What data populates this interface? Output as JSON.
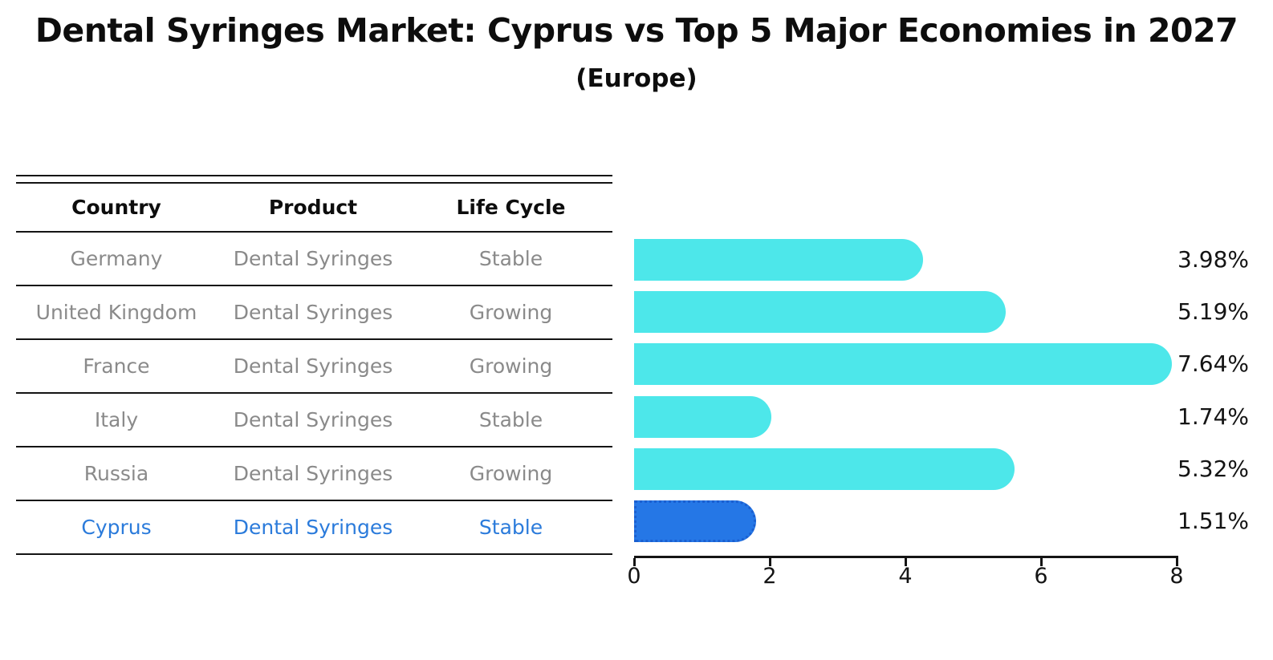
{
  "title": "Dental Syringes Market: Cyprus vs Top 5 Major Economies in 2027",
  "subtitle": "(Europe)",
  "table": {
    "headers": [
      "Country",
      "Product",
      "Life Cycle"
    ],
    "rows": [
      {
        "country": "Germany",
        "product": "Dental Syringes",
        "life_cycle": "Stable",
        "highlight": false
      },
      {
        "country": "United Kingdom",
        "product": "Dental Syringes",
        "life_cycle": "Growing",
        "highlight": false
      },
      {
        "country": "France",
        "product": "Dental Syringes",
        "life_cycle": "Growing",
        "highlight": false
      },
      {
        "country": "Italy",
        "product": "Dental Syringes",
        "life_cycle": "Stable",
        "highlight": false
      },
      {
        "country": "Russia",
        "product": "Dental Syringes",
        "life_cycle": "Growing",
        "highlight": true
      },
      {
        "country": "Cyprus",
        "product": "Dental Syringes",
        "life_cycle": "Stable",
        "highlight": true
      }
    ]
  },
  "chart_data": {
    "type": "bar",
    "orientation": "horizontal",
    "categories": [
      "Germany",
      "United Kingdom",
      "France",
      "Italy",
      "Russia",
      "Cyprus"
    ],
    "values": [
      3.98,
      5.19,
      7.64,
      1.74,
      5.32,
      1.51
    ],
    "value_labels": [
      "3.98%",
      "5.19%",
      "7.64%",
      "1.74%",
      "5.32%",
      "1.51%"
    ],
    "highlight_index": 5,
    "xlim": [
      0,
      8
    ],
    "x_ticks": [
      "0",
      "2",
      "4",
      "6",
      "8"
    ],
    "grid": false,
    "legend": false,
    "title": "Dental Syringes Market: Cyprus vs Top 5 Major Economies in 2027 (Europe)",
    "xlabel": "",
    "ylabel": ""
  },
  "colors": {
    "bar": "#4de7ea",
    "highlight_bar": "#2577e6",
    "highlight_border": "#1a5fd0",
    "row_text": "#8a8a8a",
    "highlight_text": "#2b7bdb",
    "axis": "#141414"
  }
}
